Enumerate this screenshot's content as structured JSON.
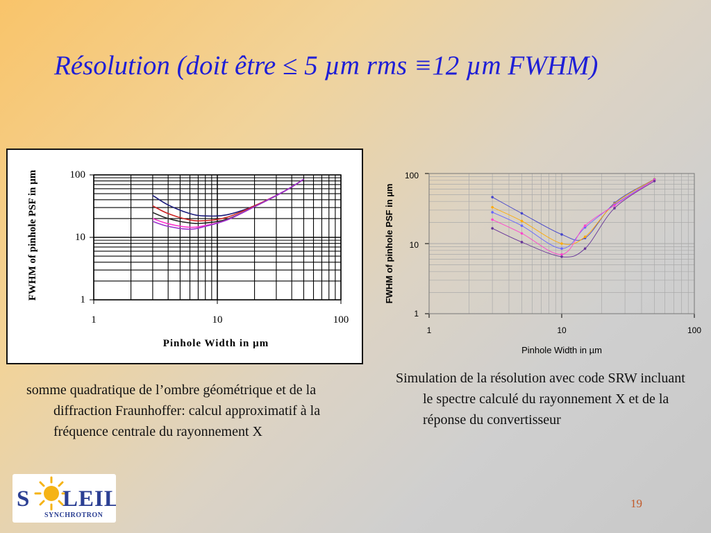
{
  "slide": {
    "title": "Résolution (doit être ≤ 5 µm rms ≡12 µm FWHM)",
    "caption_left": "somme quadratique de l’ombre géométrique et de la diffraction Fraunhoffer: calcul approximatif à la fréquence centrale du rayonnement X",
    "caption_right": "Simulation de la résolution avec code SRW incluant le spectre calculé du rayonnement X et de la réponse du convertisseur",
    "page_number": "19",
    "logo": {
      "text_main": "S LEIL",
      "text_sub": "SYNCHROTRON",
      "colors": {
        "main": "#2b3f93",
        "sun": "#f5b315"
      }
    }
  },
  "chart_data": [
    {
      "type": "line",
      "x_scale": "log",
      "y_scale": "log",
      "xlim": [
        1,
        100
      ],
      "ylim": [
        1,
        100
      ],
      "x_ticks": [
        "1",
        "10",
        "100"
      ],
      "y_ticks": [
        "1",
        "10",
        "100"
      ],
      "xlabel": "Pinhole Width in µm",
      "ylabel": "FWHM of pinhole PSF in µm",
      "grid": true,
      "legend": "none",
      "series": [
        {
          "color": "#1a1a7a",
          "x": [
            3,
            4,
            6,
            8,
            12,
            20,
            35,
            50
          ],
          "y": [
            47,
            33,
            24,
            22,
            23,
            32,
            55,
            85
          ]
        },
        {
          "color": "#cc2222",
          "x": [
            3,
            4,
            6,
            8,
            12,
            20,
            35,
            50
          ],
          "y": [
            32,
            24,
            19,
            18.5,
            21,
            32,
            55,
            85
          ]
        },
        {
          "color": "#222222",
          "x": [
            3,
            4,
            6,
            8,
            12,
            20,
            35,
            50
          ],
          "y": [
            25,
            20,
            17,
            17,
            19.5,
            31,
            55,
            85
          ]
        },
        {
          "color": "#ff33cc",
          "x": [
            3,
            4,
            6,
            8,
            12,
            20,
            35,
            50
          ],
          "y": [
            20,
            16.5,
            14.5,
            15.5,
            19,
            31,
            55,
            85
          ]
        },
        {
          "color": "#9933cc",
          "x": [
            3,
            4,
            6,
            8,
            12,
            20,
            35,
            50
          ],
          "y": [
            18,
            15,
            13.5,
            15,
            19,
            31,
            55,
            85
          ]
        }
      ]
    },
    {
      "type": "line",
      "x_scale": "log",
      "y_scale": "log",
      "xlim": [
        1,
        100
      ],
      "ylim": [
        1,
        100
      ],
      "x_ticks": [
        "1",
        "10",
        "100"
      ],
      "y_ticks": [
        "1",
        "10",
        "100"
      ],
      "xlabel": "Pinhole Width in µm",
      "ylabel": "FWHM of pinhole PSF in µm",
      "grid": true,
      "legend": "none",
      "series": [
        {
          "color": "#4444cc",
          "x": [
            3,
            5,
            10,
            15,
            25,
            50
          ],
          "y": [
            46,
            27,
            13.5,
            12,
            38,
            83
          ]
        },
        {
          "color": "#ffaa00",
          "x": [
            3,
            5,
            10,
            15,
            25,
            50
          ],
          "y": [
            33,
            21,
            10,
            12.5,
            37,
            83
          ]
        },
        {
          "color": "#6666ff",
          "x": [
            3,
            5,
            10,
            15,
            25,
            50
          ],
          "y": [
            28,
            18,
            8.5,
            17,
            36,
            82
          ]
        },
        {
          "color": "#ff44cc",
          "x": [
            3,
            5,
            10,
            15,
            25,
            50
          ],
          "y": [
            22,
            14,
            7,
            18,
            35,
            81
          ]
        },
        {
          "color": "#663399",
          "x": [
            3,
            5,
            10,
            15,
            25,
            50
          ],
          "y": [
            16.5,
            10.5,
            6.5,
            8.5,
            32,
            78
          ]
        }
      ]
    }
  ]
}
